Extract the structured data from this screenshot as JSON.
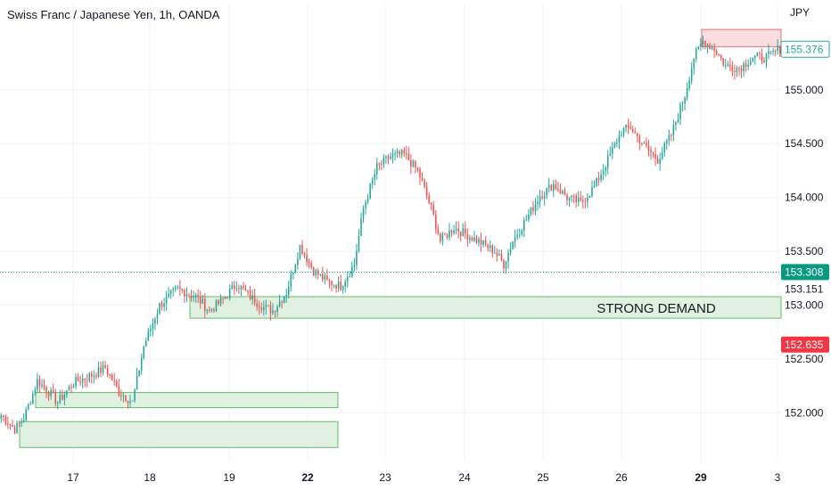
{
  "header": {
    "title": "Swiss Franc / Japanese Yen, 1h, OANDA",
    "currency": "JPY"
  },
  "chart_data": {
    "type": "candlestick",
    "title": "Swiss Franc / Japanese Yen, 1h, OANDA",
    "ylabel": "JPY",
    "ylim": [
      151.55,
      155.8
    ],
    "y_ticks": [
      "155.000",
      "154.500",
      "154.000",
      "153.500",
      "153.000",
      "152.500",
      "152.000"
    ],
    "x_ticks": [
      {
        "label": "17",
        "bold": false
      },
      {
        "label": "18",
        "bold": false
      },
      {
        "label": "19",
        "bold": false
      },
      {
        "label": "22",
        "bold": true
      },
      {
        "label": "23",
        "bold": false
      },
      {
        "label": "24",
        "bold": false
      },
      {
        "label": "25",
        "bold": false
      },
      {
        "label": "26",
        "bold": false
      },
      {
        "label": "29",
        "bold": true
      },
      {
        "label": "3",
        "bold": false
      }
    ],
    "price_tags": [
      {
        "label": "155.376",
        "value": 155.376,
        "style": "outline",
        "color": "#26a69a"
      },
      {
        "label": "153.308",
        "value": 153.308,
        "style": "filled",
        "color": "#089981"
      },
      {
        "label": "153.151",
        "value": 153.151,
        "style": "plain",
        "color": "#131722"
      },
      {
        "label": "152.635",
        "value": 152.635,
        "style": "filled",
        "color": "#f23645"
      }
    ],
    "dotted_line_value": 153.308,
    "zones": [
      {
        "name": "supply",
        "y_low": 155.4,
        "y_high": 155.56,
        "color": "#f8d7da",
        "border": "#e57373",
        "label": ""
      },
      {
        "name": "strong-demand",
        "y_low": 152.88,
        "y_high": 153.08,
        "color": "#dcefdc",
        "border": "#66bb6a",
        "label": "STRONG DEMAND"
      },
      {
        "name": "demand-mid",
        "y_low": 152.05,
        "y_high": 152.19,
        "color": "#dcefdc",
        "border": "#66bb6a",
        "label": ""
      },
      {
        "name": "demand-low",
        "y_low": 151.68,
        "y_high": 151.92,
        "color": "#dcefdc",
        "border": "#66bb6a",
        "label": ""
      }
    ],
    "colors": {
      "up": "#26a69a",
      "down": "#ef5350",
      "grid": "#f0f3fa"
    },
    "anchors": [
      [
        0,
        151.98
      ],
      [
        6,
        151.85
      ],
      [
        10,
        151.95
      ],
      [
        16,
        152.3
      ],
      [
        20,
        152.22
      ],
      [
        25,
        152.1
      ],
      [
        32,
        152.28
      ],
      [
        40,
        152.35
      ],
      [
        46,
        152.42
      ],
      [
        52,
        152.2
      ],
      [
        58,
        152.1
      ],
      [
        63,
        152.62
      ],
      [
        70,
        153.0
      ],
      [
        78,
        153.15
      ],
      [
        86,
        153.08
      ],
      [
        92,
        152.95
      ],
      [
        98,
        153.05
      ],
      [
        104,
        153.2
      ],
      [
        110,
        153.08
      ],
      [
        116,
        152.98
      ],
      [
        120,
        152.95
      ],
      [
        126,
        153.12
      ],
      [
        132,
        153.55
      ],
      [
        138,
        153.32
      ],
      [
        144,
        153.22
      ],
      [
        150,
        153.18
      ],
      [
        156,
        153.38
      ],
      [
        160,
        153.9
      ],
      [
        166,
        154.28
      ],
      [
        172,
        154.38
      ],
      [
        178,
        154.4
      ],
      [
        184,
        154.25
      ],
      [
        190,
        153.9
      ],
      [
        194,
        153.6
      ],
      [
        200,
        153.72
      ],
      [
        206,
        153.65
      ],
      [
        212,
        153.58
      ],
      [
        218,
        153.5
      ],
      [
        222,
        153.38
      ],
      [
        226,
        153.6
      ],
      [
        232,
        153.8
      ],
      [
        238,
        154.02
      ],
      [
        244,
        154.12
      ],
      [
        250,
        154.0
      ],
      [
        256,
        153.95
      ],
      [
        262,
        154.1
      ],
      [
        268,
        154.35
      ],
      [
        274,
        154.62
      ],
      [
        278,
        154.65
      ],
      [
        284,
        154.48
      ],
      [
        290,
        154.35
      ],
      [
        296,
        154.58
      ],
      [
        302,
        154.95
      ],
      [
        306,
        155.3
      ],
      [
        310,
        155.45
      ],
      [
        315,
        155.38
      ],
      [
        320,
        155.22
      ],
      [
        326,
        155.2
      ],
      [
        332,
        155.3
      ],
      [
        338,
        155.3
      ],
      [
        344,
        155.38
      ]
    ]
  }
}
